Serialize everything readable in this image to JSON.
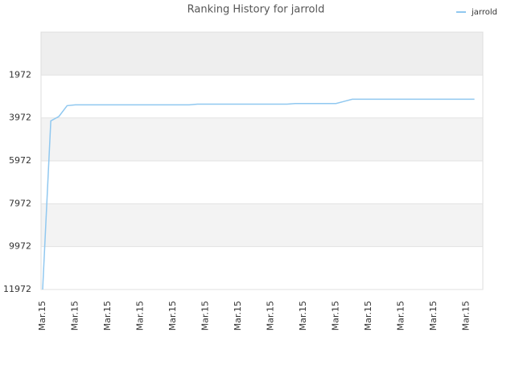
{
  "chart_data": {
    "type": "line",
    "title": "Ranking History for jarrold",
    "categories": [
      "Mar.15",
      null,
      null,
      null,
      "Mar.15",
      null,
      null,
      null,
      "Mar.15",
      null,
      null,
      null,
      "Mar.15",
      null,
      null,
      null,
      "Mar.15",
      null,
      null,
      null,
      "Mar.15",
      null,
      null,
      null,
      "Mar.15",
      null,
      null,
      null,
      "Mar.15",
      null,
      null,
      null,
      "Mar.15",
      null,
      null,
      null,
      "Mar.15",
      null,
      null,
      null,
      "Mar.15",
      null,
      null,
      null,
      "Mar.15",
      null,
      null,
      null,
      "Mar.15",
      null,
      null,
      null,
      "Mar.15",
      null
    ],
    "series": [
      {
        "name": "jarrold",
        "color": "#90c8f0",
        "values": [
          11972,
          4110,
          3900,
          3400,
          3360,
          3360,
          3360,
          3360,
          3360,
          3360,
          3360,
          3360,
          3360,
          3360,
          3360,
          3360,
          3360,
          3360,
          3360,
          3330,
          3330,
          3330,
          3330,
          3330,
          3330,
          3330,
          3330,
          3330,
          3330,
          3330,
          3330,
          3300,
          3300,
          3300,
          3300,
          3300,
          3300,
          3200,
          3098,
          3098,
          3098,
          3098,
          3098,
          3098,
          3098,
          3098,
          3098,
          3098,
          3098,
          3098,
          3098,
          3098,
          3098,
          3098
        ]
      }
    ],
    "ylim": [
      11972,
      -28
    ],
    "yticks": [
      1972,
      3972,
      5972,
      7972,
      9972,
      11972
    ],
    "grid": true,
    "legend": "top-right"
  }
}
